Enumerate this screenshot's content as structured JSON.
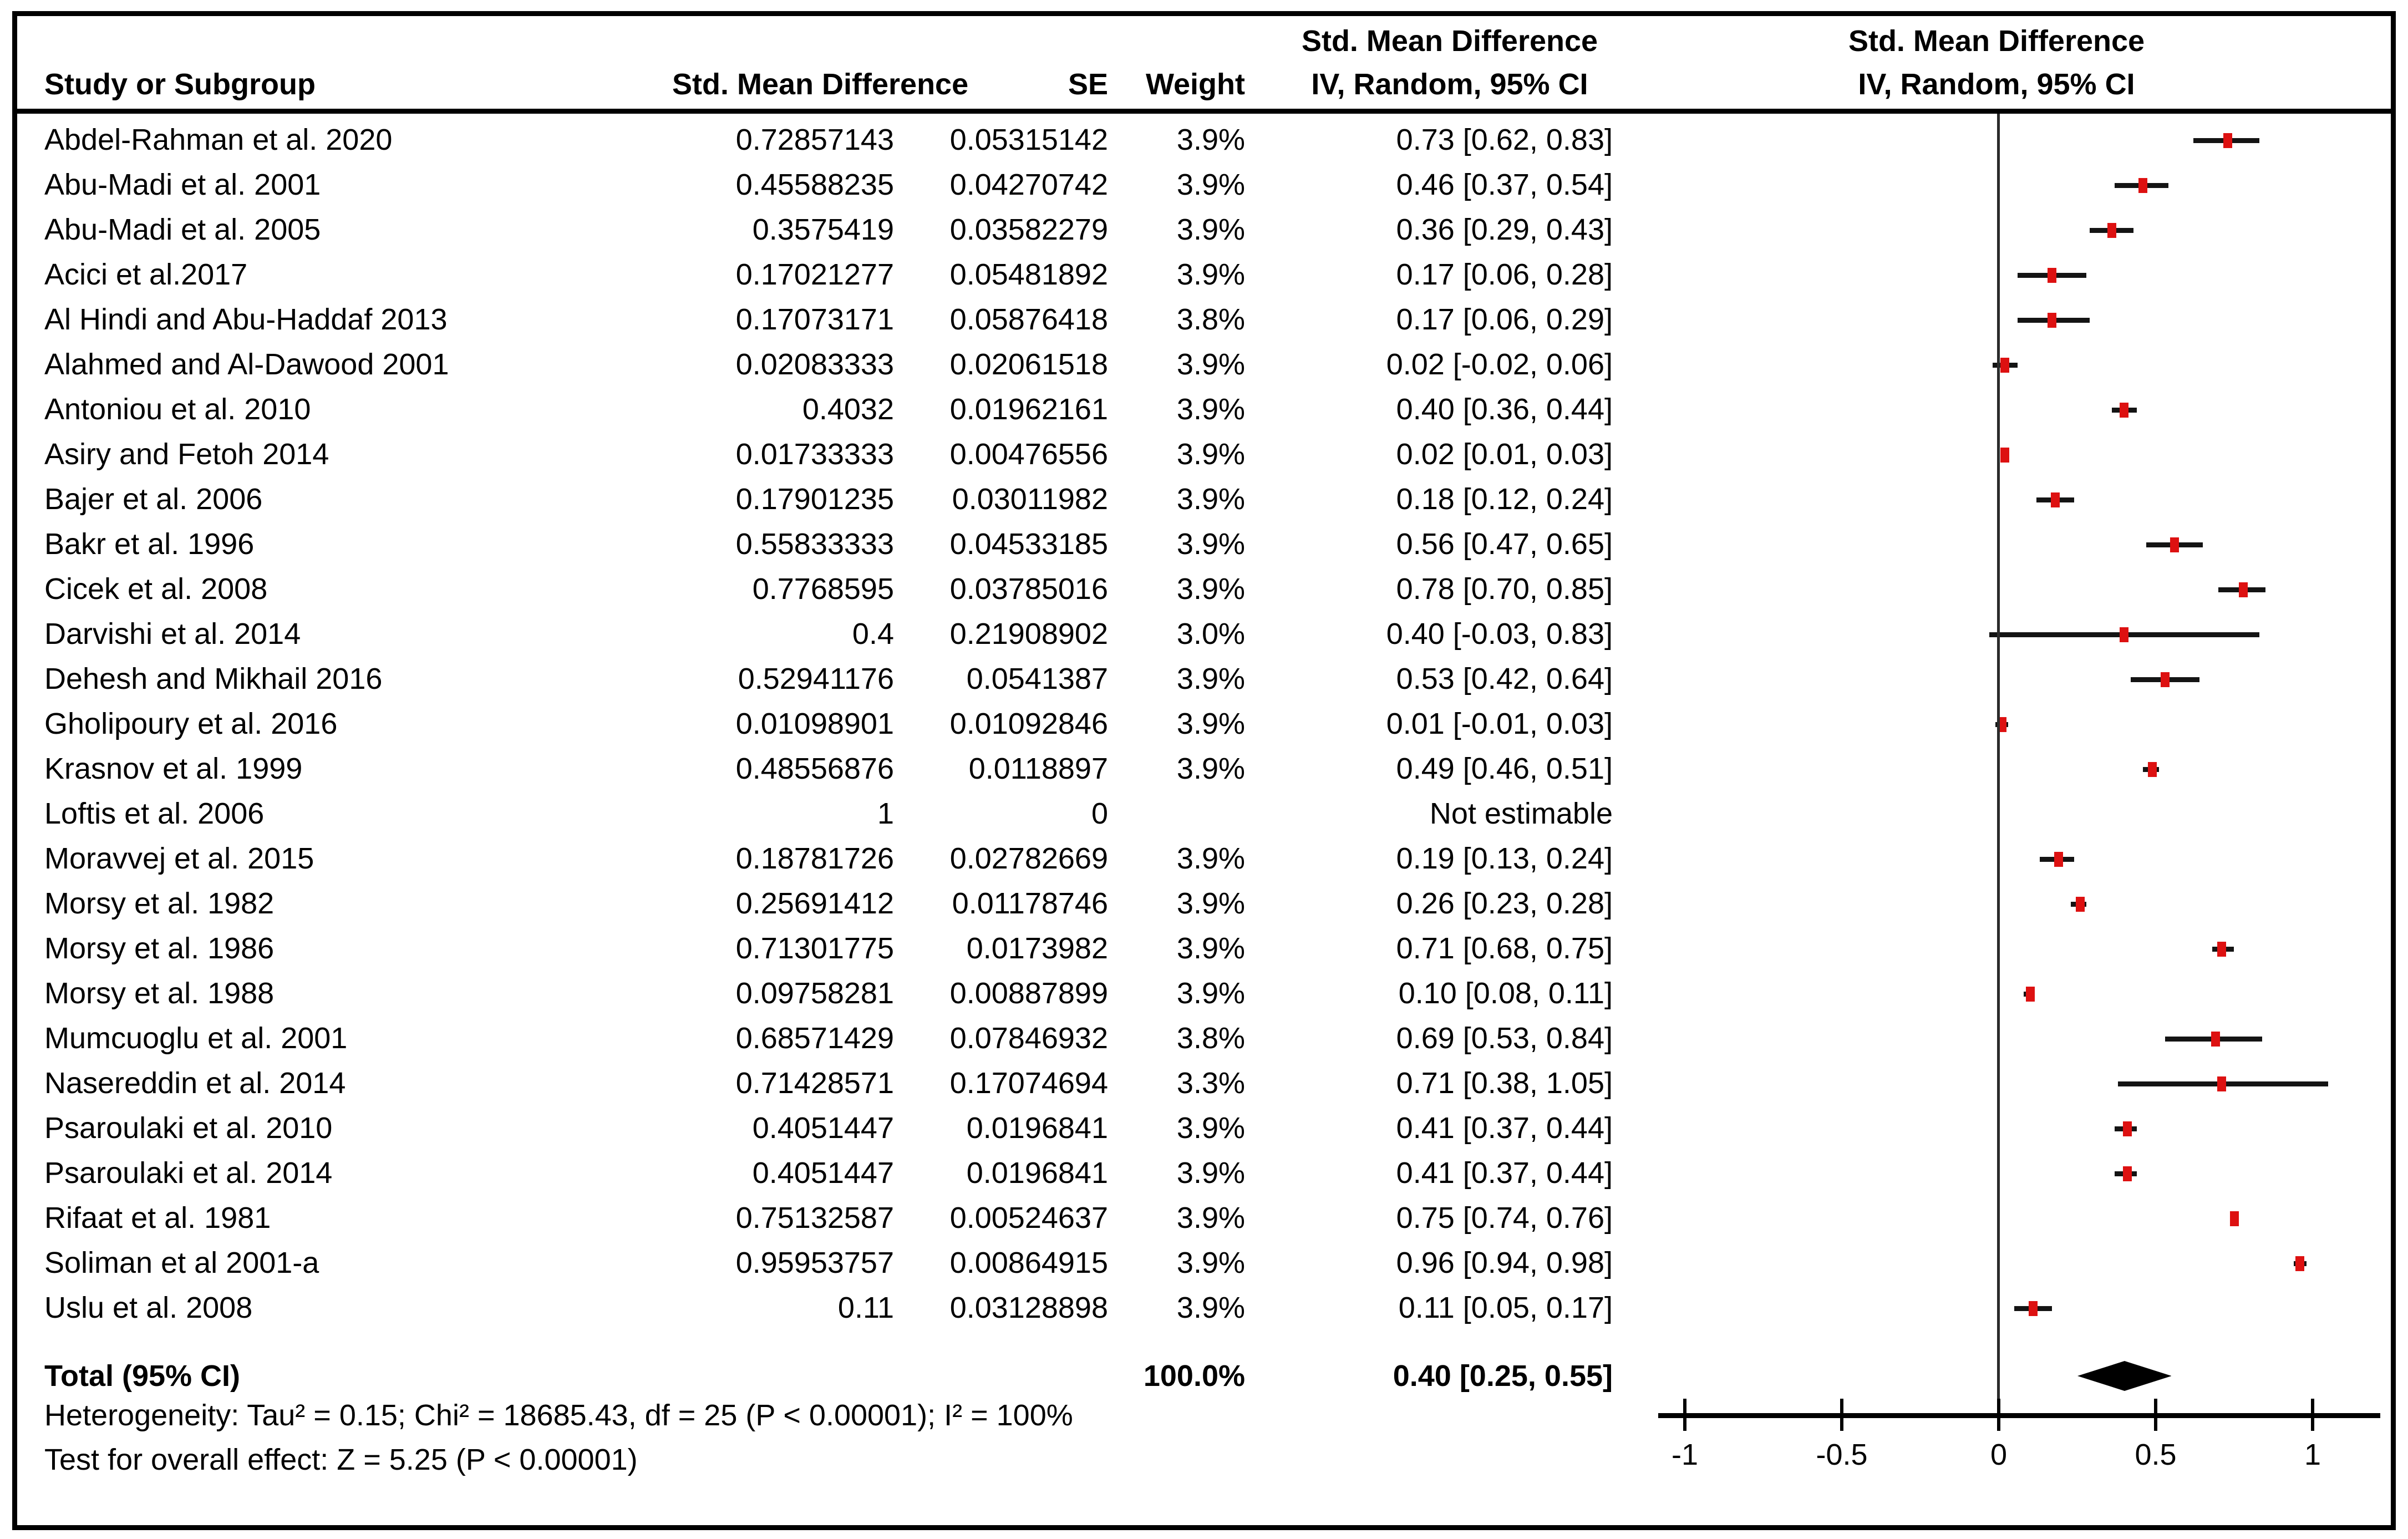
{
  "table": {
    "header": {
      "study": "Study or Subgroup",
      "smd": "Std. Mean Difference",
      "se": "SE",
      "weight": "Weight",
      "effect_line1": "Std. Mean Difference",
      "effect_line2": "IV, Random, 95% CI"
    },
    "total_label": "Total (95% CI)",
    "total_weight": "100.0%",
    "total_ci": "0.40 [0.25, 0.55]",
    "footer": {
      "heterogeneity": "Heterogeneity: Tau² = 0.15; Chi² = 18685.43, df = 25 (P < 0.00001); I² = 100%",
      "overall_effect": "Test for overall effect: Z = 5.25 (P < 0.00001)"
    }
  },
  "plot": {
    "header_line1": "Std. Mean Difference",
    "header_line2": "IV, Random, 95% CI",
    "colors": {
      "marker": "#dd1111",
      "ci_line": "#141414",
      "diamond": "#000000",
      "text": "#000000",
      "border": "#000000"
    }
  },
  "chart_data": {
    "type": "forest",
    "effect_measure": "Std. Mean Difference",
    "model": "IV, Random, 95% CI",
    "axis": {
      "ticks": [
        -1,
        -0.5,
        0,
        0.5,
        1
      ],
      "tick_labels": [
        "-1",
        "-0.5",
        "0",
        "0.5",
        "1"
      ],
      "xlim": [
        -1.1,
        1.25
      ],
      "zero_line": 0
    },
    "studies": [
      {
        "name": "Abdel-Rahman et al. 2020",
        "smd": "0.72857143",
        "se": "0.05315142",
        "weight": "3.9%",
        "ci": "0.73 [0.62, 0.83]",
        "est": 0.73,
        "lo": 0.62,
        "hi": 0.83
      },
      {
        "name": "Abu-Madi et al. 2001",
        "smd": "0.45588235",
        "se": "0.04270742",
        "weight": "3.9%",
        "ci": "0.46 [0.37, 0.54]",
        "est": 0.46,
        "lo": 0.37,
        "hi": 0.54
      },
      {
        "name": "Abu-Madi et al. 2005",
        "smd": "0.3575419",
        "se": "0.03582279",
        "weight": "3.9%",
        "ci": "0.36 [0.29, 0.43]",
        "est": 0.36,
        "lo": 0.29,
        "hi": 0.43
      },
      {
        "name": "Acici et al.2017",
        "smd": "0.17021277",
        "se": "0.05481892",
        "weight": "3.9%",
        "ci": "0.17 [0.06, 0.28]",
        "est": 0.17,
        "lo": 0.06,
        "hi": 0.28
      },
      {
        "name": "Al Hindi and Abu-Haddaf 2013",
        "smd": "0.17073171",
        "se": "0.05876418",
        "weight": "3.8%",
        "ci": "0.17 [0.06, 0.29]",
        "est": 0.17,
        "lo": 0.06,
        "hi": 0.29
      },
      {
        "name": "Alahmed and Al-Dawood 2001",
        "smd": "0.02083333",
        "se": "0.02061518",
        "weight": "3.9%",
        "ci": "0.02 [-0.02, 0.06]",
        "est": 0.02,
        "lo": -0.02,
        "hi": 0.06
      },
      {
        "name": "Antoniou et al. 2010",
        "smd": "0.4032",
        "se": "0.01962161",
        "weight": "3.9%",
        "ci": "0.40 [0.36, 0.44]",
        "est": 0.4,
        "lo": 0.36,
        "hi": 0.44
      },
      {
        "name": "Asiry and Fetoh 2014",
        "smd": "0.01733333",
        "se": "0.00476556",
        "weight": "3.9%",
        "ci": "0.02 [0.01, 0.03]",
        "est": 0.02,
        "lo": 0.01,
        "hi": 0.03
      },
      {
        "name": "Bajer et al. 2006",
        "smd": "0.17901235",
        "se": "0.03011982",
        "weight": "3.9%",
        "ci": "0.18 [0.12, 0.24]",
        "est": 0.18,
        "lo": 0.12,
        "hi": 0.24
      },
      {
        "name": "Bakr et al. 1996",
        "smd": "0.55833333",
        "se": "0.04533185",
        "weight": "3.9%",
        "ci": "0.56 [0.47, 0.65]",
        "est": 0.56,
        "lo": 0.47,
        "hi": 0.65
      },
      {
        "name": "Cicek et al. 2008",
        "smd": "0.7768595",
        "se": "0.03785016",
        "weight": "3.9%",
        "ci": "0.78 [0.70, 0.85]",
        "est": 0.78,
        "lo": 0.7,
        "hi": 0.85
      },
      {
        "name": "Darvishi et al. 2014",
        "smd": "0.4",
        "se": "0.21908902",
        "weight": "3.0%",
        "ci": "0.40 [-0.03, 0.83]",
        "est": 0.4,
        "lo": -0.03,
        "hi": 0.83
      },
      {
        "name": "Dehesh and Mikhail 2016",
        "smd": "0.52941176",
        "se": "0.0541387",
        "weight": "3.9%",
        "ci": "0.53 [0.42, 0.64]",
        "est": 0.53,
        "lo": 0.42,
        "hi": 0.64
      },
      {
        "name": "Gholipoury et al. 2016",
        "smd": "0.01098901",
        "se": "0.01092846",
        "weight": "3.9%",
        "ci": "0.01 [-0.01, 0.03]",
        "est": 0.01,
        "lo": -0.01,
        "hi": 0.03
      },
      {
        "name": "Krasnov et al. 1999",
        "smd": "0.48556876",
        "se": "0.0118897",
        "weight": "3.9%",
        "ci": "0.49 [0.46, 0.51]",
        "est": 0.49,
        "lo": 0.46,
        "hi": 0.51
      },
      {
        "name": "Loftis et al. 2006",
        "smd": "1",
        "se": "0",
        "weight": "",
        "ci": "Not estimable",
        "est": null,
        "lo": null,
        "hi": null
      },
      {
        "name": "Moravvej et al. 2015",
        "smd": "0.18781726",
        "se": "0.02782669",
        "weight": "3.9%",
        "ci": "0.19 [0.13, 0.24]",
        "est": 0.19,
        "lo": 0.13,
        "hi": 0.24
      },
      {
        "name": "Morsy et al. 1982",
        "smd": "0.25691412",
        "se": "0.01178746",
        "weight": "3.9%",
        "ci": "0.26 [0.23, 0.28]",
        "est": 0.26,
        "lo": 0.23,
        "hi": 0.28
      },
      {
        "name": "Morsy et al. 1986",
        "smd": "0.71301775",
        "se": "0.0173982",
        "weight": "3.9%",
        "ci": "0.71 [0.68, 0.75]",
        "est": 0.71,
        "lo": 0.68,
        "hi": 0.75
      },
      {
        "name": "Morsy et al. 1988",
        "smd": "0.09758281",
        "se": "0.00887899",
        "weight": "3.9%",
        "ci": "0.10 [0.08, 0.11]",
        "est": 0.1,
        "lo": 0.08,
        "hi": 0.11
      },
      {
        "name": "Mumcuoglu et al. 2001",
        "smd": "0.68571429",
        "se": "0.07846932",
        "weight": "3.8%",
        "ci": "0.69 [0.53, 0.84]",
        "est": 0.69,
        "lo": 0.53,
        "hi": 0.84
      },
      {
        "name": "Nasereddin et al. 2014",
        "smd": "0.71428571",
        "se": "0.17074694",
        "weight": "3.3%",
        "ci": "0.71 [0.38, 1.05]",
        "est": 0.71,
        "lo": 0.38,
        "hi": 1.05
      },
      {
        "name": "Psaroulaki et al. 2010",
        "smd": "0.4051447",
        "se": "0.0196841",
        "weight": "3.9%",
        "ci": "0.41 [0.37, 0.44]",
        "est": 0.41,
        "lo": 0.37,
        "hi": 0.44
      },
      {
        "name": "Psaroulaki et al. 2014",
        "smd": "0.4051447",
        "se": "0.0196841",
        "weight": "3.9%",
        "ci": "0.41 [0.37, 0.44]",
        "est": 0.41,
        "lo": 0.37,
        "hi": 0.44
      },
      {
        "name": "Rifaat et al. 1981",
        "smd": "0.75132587",
        "se": "0.00524637",
        "weight": "3.9%",
        "ci": "0.75 [0.74, 0.76]",
        "est": 0.75,
        "lo": 0.74,
        "hi": 0.76
      },
      {
        "name": "Soliman et al 2001-a",
        "smd": "0.95953757",
        "se": "0.00864915",
        "weight": "3.9%",
        "ci": "0.96 [0.94, 0.98]",
        "est": 0.96,
        "lo": 0.94,
        "hi": 0.98
      },
      {
        "name": "Uslu et al. 2008",
        "smd": "0.11",
        "se": "0.03128898",
        "weight": "3.9%",
        "ci": "0.11 [0.05, 0.17]",
        "est": 0.11,
        "lo": 0.05,
        "hi": 0.17
      }
    ],
    "total": {
      "label": "Total (95% CI)",
      "weight": "100.0%",
      "ci_text": "0.40 [0.25, 0.55]",
      "est": 0.4,
      "lo": 0.25,
      "hi": 0.55
    },
    "heterogeneity": {
      "tau2": 0.15,
      "chi2": 18685.43,
      "df": 25,
      "p": "< 0.00001",
      "i2": "100%"
    },
    "overall_effect": {
      "z": 5.25,
      "p": "< 0.00001"
    }
  }
}
